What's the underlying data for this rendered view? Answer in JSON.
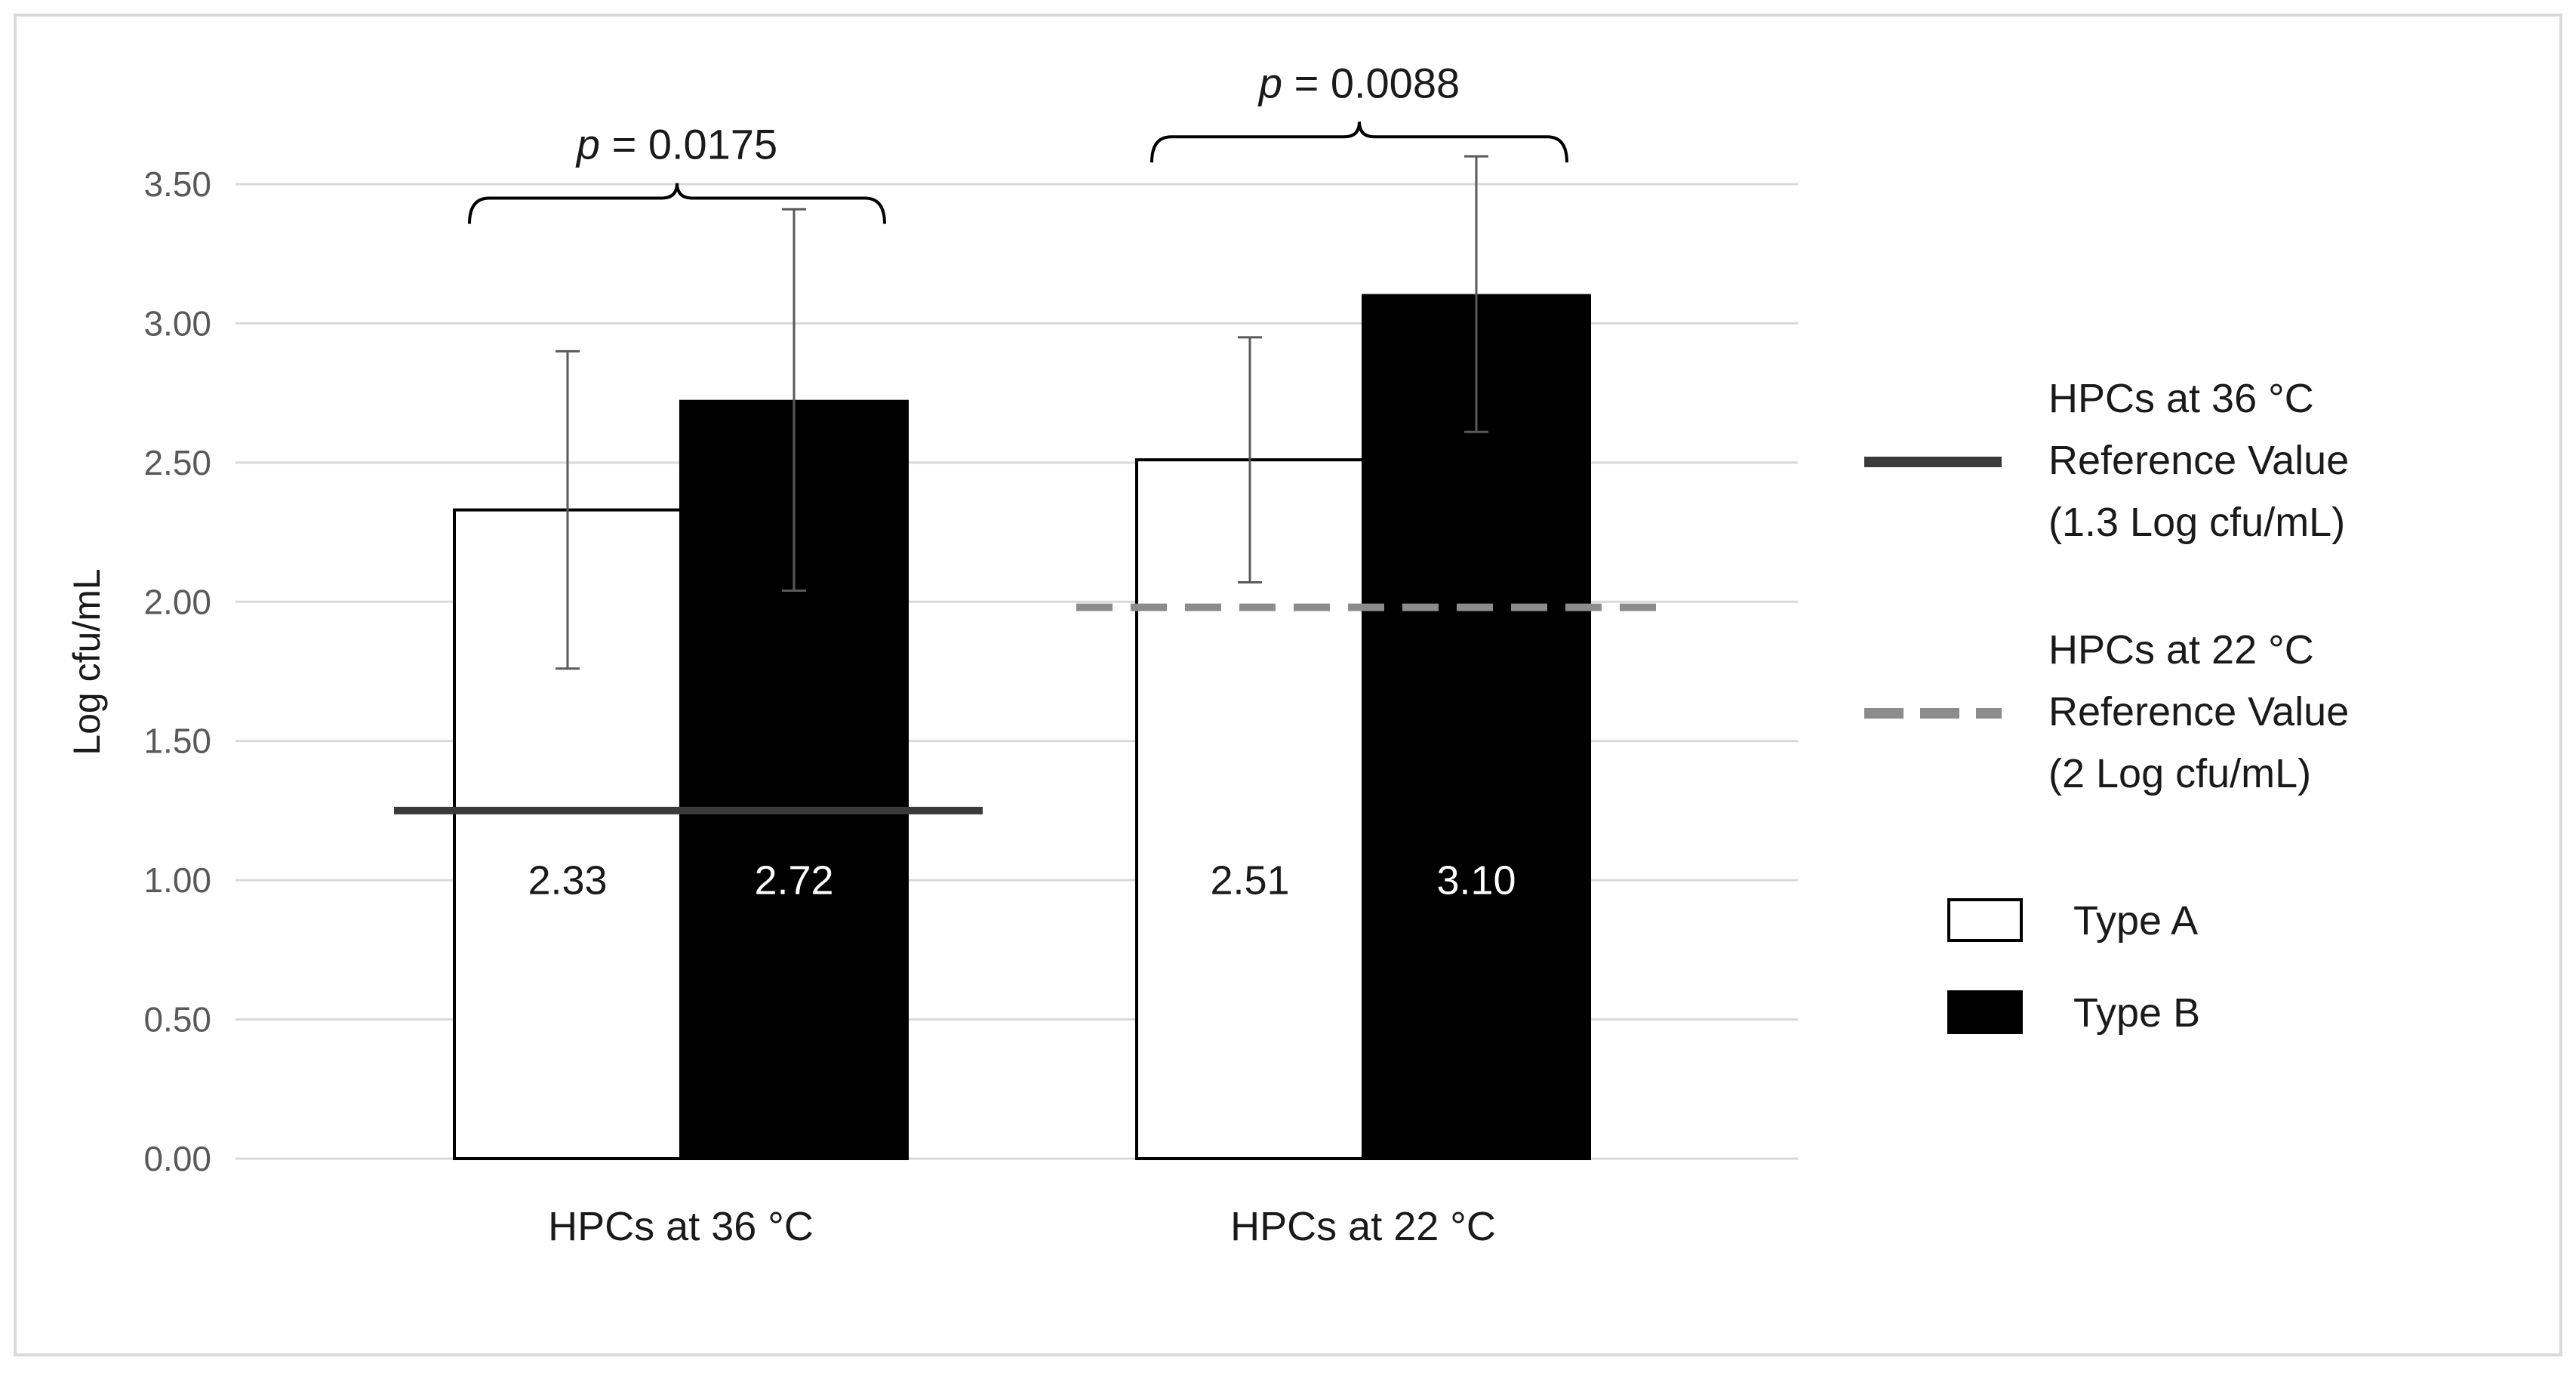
{
  "chart_data": {
    "type": "bar",
    "ylabel": "Log cfu/mL",
    "ylim": [
      0,
      3.5
    ],
    "yticks": [
      0,
      0.5,
      1,
      1.5,
      2,
      2.5,
      3,
      3.5
    ],
    "ytick_labels": [
      "0.00",
      "0.50",
      "1.00",
      "1.50",
      "2.00",
      "2.50",
      "3.00",
      "3.50"
    ],
    "grid": "horizontal",
    "categories": [
      "HPCs at 36 °C",
      "HPCs at 22 °C"
    ],
    "series": [
      {
        "name": "Type A",
        "values": [
          2.33,
          2.51
        ],
        "value_labels": [
          "2.33",
          "2.51"
        ],
        "error_low": [
          1.76,
          2.07
        ],
        "error_high": [
          2.9,
          2.95
        ],
        "fill": "#ffffff",
        "stroke": "#000000",
        "label_color": "#1a1a1a"
      },
      {
        "name": "Type B",
        "values": [
          2.72,
          3.1
        ],
        "value_labels": [
          "2.72",
          "3.10"
        ],
        "error_low": [
          2.04,
          2.61
        ],
        "error_high": [
          3.41,
          3.6
        ],
        "fill": "#000000",
        "stroke": "#000000",
        "label_color": "#ffffff"
      }
    ],
    "reference_lines": [
      {
        "category_index": 0,
        "value": 1.25,
        "style": "solid",
        "color": "#3a3a3a",
        "legend_lines": [
          "HPCs at 36 °C",
          "Reference Value",
          "(1.3 Log cfu/mL)"
        ]
      },
      {
        "category_index": 1,
        "value": 1.98,
        "style": "dashed",
        "color": "#8c8c8c",
        "legend_lines": [
          "HPCs at 22 °C",
          "Reference Value",
          "(2 Log cfu/mL)"
        ]
      }
    ],
    "annotations": [
      {
        "category_index": 0,
        "p_symbol": "p",
        "p_text": " = 0.0175",
        "bracket_value": 3.45
      },
      {
        "category_index": 1,
        "p_symbol": "p",
        "p_text": " = 0.0088",
        "bracket_value": 3.67
      }
    ],
    "legend_position": "right"
  }
}
